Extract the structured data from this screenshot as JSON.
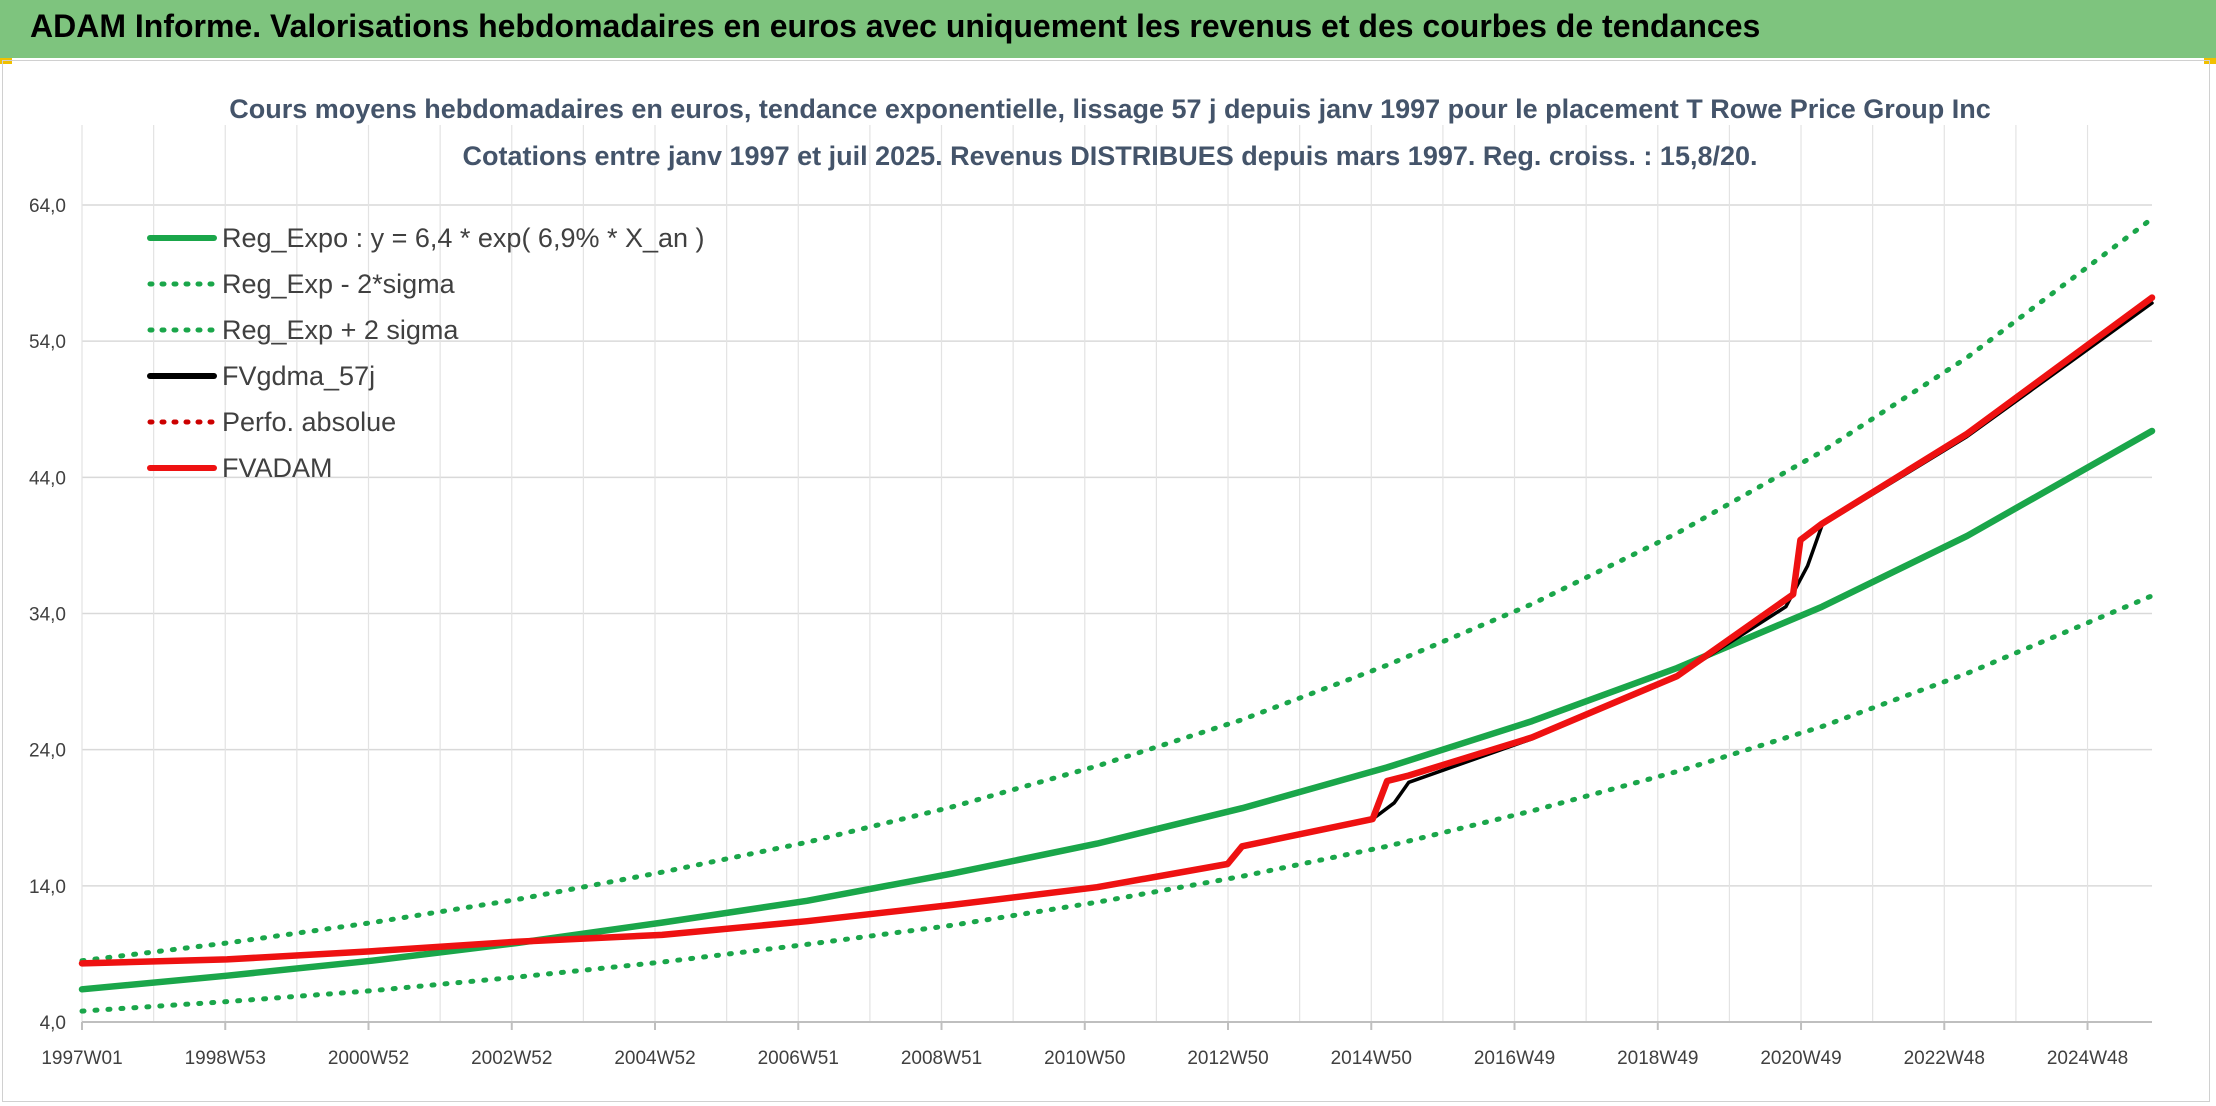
{
  "header": {
    "title": "ADAM Informe. Valorisations hebdomadaires en euros avec uniquement les revenus et des courbes de tendances"
  },
  "chart_data": {
    "type": "line",
    "title": "Cours moyens hebdomadaires en euros, tendance exponentielle, lissage 57 j depuis janv 1997 pour le placement T Rowe Price Group Inc",
    "subtitle": "Cotations entre janv 1997 et juil 2025. Revenus DISTRIBUES depuis mars 1997. Reg. croiss. : 15,8/20.",
    "xlabel": "",
    "ylabel": "",
    "x_tick_labels": [
      "1997W01",
      "1998W53",
      "2000W52",
      "2002W52",
      "2004W52",
      "2006W51",
      "2008W51",
      "2010W50",
      "2012W50",
      "2014W50",
      "2016W49",
      "2018W49",
      "2020W49",
      "2022W48",
      "2024W48"
    ],
    "x_range": [
      1997.0,
      2025.55
    ],
    "y_ticks": [
      "4,0",
      "14,0",
      "24,0",
      "34,0",
      "44,0",
      "54,0",
      "64,0"
    ],
    "ylim": [
      4,
      64
    ],
    "grid": true,
    "legend_position": "top-left",
    "colors": {
      "green": "#1aa64a",
      "black": "#000000",
      "red": "#ee1111"
    },
    "series": [
      {
        "name": "Reg_Expo : y = 6,4 * exp( 6,9% *  X_an )",
        "style": "solid",
        "color": "#1aa64a",
        "x": [
          1997.0,
          1999.0,
          2001.0,
          2003.0,
          2005.0,
          2007.0,
          2009.0,
          2011.0,
          2013.0,
          2015.0,
          2017.0,
          2019.0,
          2021.0,
          2023.0,
          2025.55
        ],
        "y": [
          6.4,
          7.4,
          8.5,
          9.8,
          11.3,
          12.9,
          14.9,
          17.1,
          19.7,
          22.7,
          26.1,
          30.0,
          34.5,
          39.7,
          47.4
        ]
      },
      {
        "name": "Reg_Exp - 2*sigma",
        "style": "dotted",
        "color": "#1aa64a",
        "x": [
          1997.0,
          1999.0,
          2001.0,
          2003.0,
          2005.0,
          2007.0,
          2009.0,
          2011.0,
          2013.0,
          2015.0,
          2017.0,
          2019.0,
          2021.0,
          2023.0,
          2025.55
        ],
        "y": [
          4.8,
          5.5,
          6.3,
          7.3,
          8.4,
          9.7,
          11.1,
          12.8,
          14.7,
          16.9,
          19.5,
          22.4,
          25.7,
          29.6,
          35.3
        ]
      },
      {
        "name": "Reg_Exp + 2 sigma",
        "style": "dotted",
        "color": "#1aa64a",
        "x": [
          1997.0,
          1999.0,
          2001.0,
          2003.0,
          2005.0,
          2007.0,
          2009.0,
          2011.0,
          2013.0,
          2015.0,
          2017.0,
          2019.0,
          2021.0,
          2023.0,
          2025.55
        ],
        "y": [
          8.5,
          9.8,
          11.3,
          13.0,
          15.0,
          17.2,
          19.8,
          22.8,
          26.2,
          30.2,
          34.7,
          39.9,
          45.9,
          52.8,
          63.0
        ]
      },
      {
        "name": "FVgdma_57j",
        "style": "solid",
        "color": "#000000",
        "x": [
          1997.0,
          1999.0,
          2001.0,
          2003.0,
          2005.0,
          2007.0,
          2009.0,
          2011.0,
          2012.8,
          2013.0,
          2014.8,
          2015.1,
          2015.3,
          2017.0,
          2019.0,
          2020.5,
          2020.8,
          2021.0,
          2023.0,
          2025.55
        ],
        "y": [
          8.3,
          8.6,
          9.2,
          9.9,
          10.4,
          11.4,
          12.6,
          13.9,
          15.6,
          16.8,
          18.9,
          20.1,
          21.6,
          24.8,
          29.4,
          34.5,
          37.5,
          40.5,
          47.0,
          56.8
        ]
      },
      {
        "name": "Perfo. absolue",
        "style": "dotted",
        "color": "#cc0000",
        "x": [],
        "y": []
      },
      {
        "name": "FVADAM",
        "style": "solid",
        "color": "#ee1111",
        "x": [
          1997.0,
          1999.0,
          2001.0,
          2003.0,
          2005.0,
          2007.0,
          2009.0,
          2011.0,
          2012.8,
          2013.0,
          2014.8,
          2015.0,
          2015.3,
          2017.0,
          2019.0,
          2020.6,
          2020.7,
          2021.0,
          2023.0,
          2025.55
        ],
        "y": [
          8.3,
          8.6,
          9.2,
          9.9,
          10.4,
          11.4,
          12.6,
          13.9,
          15.6,
          16.9,
          18.9,
          21.7,
          22.1,
          24.9,
          29.4,
          35.4,
          39.4,
          40.6,
          47.2,
          57.2
        ]
      }
    ]
  }
}
